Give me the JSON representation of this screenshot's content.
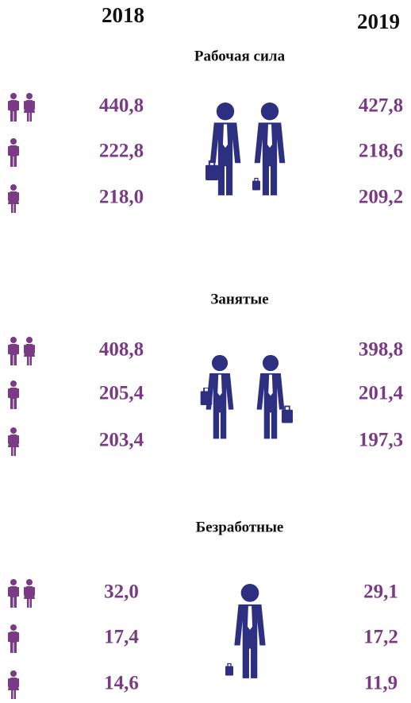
{
  "header": {
    "year_left": "2018",
    "year_right": "2019"
  },
  "sections": [
    {
      "title": "Рабочая сила",
      "rows": [
        [
          "440,8",
          "427,8"
        ],
        [
          "222,8",
          "218,6"
        ],
        [
          "218,0",
          "209,2"
        ]
      ]
    },
    {
      "title": "Занятые",
      "rows": [
        [
          "408,8",
          "398,8"
        ],
        [
          "205,4",
          "201,4"
        ],
        [
          "203,4",
          "197,3"
        ]
      ]
    },
    {
      "title": "Безработные",
      "rows": [
        [
          "32,0",
          "29,1"
        ],
        [
          "17,4",
          "17,2"
        ],
        [
          "14,6",
          "11,9"
        ]
      ]
    }
  ]
}
